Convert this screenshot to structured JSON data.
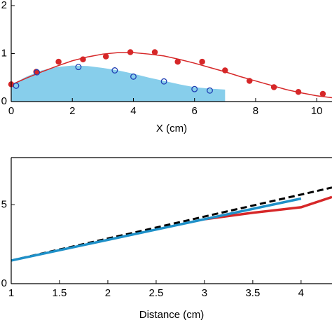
{
  "chart_data": [
    {
      "type": "line",
      "xlabel": "X (cm)",
      "xlim": [
        0,
        10.5
      ],
      "ylim": [
        0,
        2
      ],
      "xticks": [
        0,
        2,
        4,
        6,
        8,
        10
      ],
      "yticks": [
        0,
        1,
        2
      ],
      "series": [
        {
          "style": "area",
          "color": "#87ceeb",
          "x": [
            0,
            0.5,
            1,
            1.5,
            2,
            2.5,
            3,
            3.5,
            4,
            4.5,
            5,
            5.5,
            6,
            6.5,
            7
          ],
          "values": [
            0.35,
            0.52,
            0.65,
            0.72,
            0.75,
            0.74,
            0.7,
            0.65,
            0.58,
            0.5,
            0.43,
            0.36,
            0.3,
            0.27,
            0.25
          ]
        },
        {
          "style": "line",
          "color": "#d62728",
          "x": [
            0,
            0.5,
            1,
            1.5,
            2,
            2.5,
            3,
            3.5,
            4,
            4.5,
            5,
            5.5,
            6,
            6.5,
            7,
            7.5,
            8,
            8.5,
            9,
            9.5,
            10,
            10.5
          ],
          "values": [
            0.35,
            0.49,
            0.62,
            0.74,
            0.85,
            0.93,
            0.99,
            1.02,
            1.02,
            0.99,
            0.95,
            0.88,
            0.8,
            0.71,
            0.62,
            0.52,
            0.43,
            0.34,
            0.25,
            0.18,
            0.12,
            0.08
          ]
        },
        {
          "style": "filled-markers",
          "color": "#d62728",
          "x": [
            0,
            0.82,
            1.55,
            2.35,
            3.1,
            3.9,
            4.7,
            5.45,
            6.25,
            7,
            7.8,
            8.6,
            9.4,
            10.2
          ],
          "values": [
            0.36,
            0.62,
            0.83,
            0.88,
            0.94,
            1.03,
            1.03,
            0.83,
            0.83,
            0.65,
            0.43,
            0.3,
            0.2,
            0.16
          ]
        },
        {
          "style": "open-markers",
          "color": "#1f3fb4",
          "x": [
            0.16,
            0.84,
            2.2,
            3.39,
            4,
            5,
            6,
            6.5
          ],
          "values": [
            0.33,
            0.61,
            0.72,
            0.65,
            0.52,
            0.42,
            0.26,
            0.23
          ]
        }
      ]
    },
    {
      "type": "line",
      "xlabel": "Distance (cm)",
      "xlim": [
        1,
        4.32
      ],
      "ylim": [
        0,
        8
      ],
      "xticks": [
        1,
        1.5,
        2,
        2.5,
        3,
        3.5,
        4
      ],
      "yticks": [
        0,
        5
      ],
      "series": [
        {
          "style": "dashed",
          "color": "#000000",
          "x": [
            1,
            4.32
          ],
          "values": [
            1.47,
            6.1
          ]
        },
        {
          "style": "line",
          "color": "#d62728",
          "x": [
            3,
            3.5,
            4,
            4.32
          ],
          "values": [
            4.09,
            4.5,
            4.85,
            5.5
          ]
        },
        {
          "style": "line",
          "color": "#1e90c8",
          "x": [
            1,
            4
          ],
          "values": [
            1.47,
            5.4
          ]
        }
      ]
    }
  ]
}
